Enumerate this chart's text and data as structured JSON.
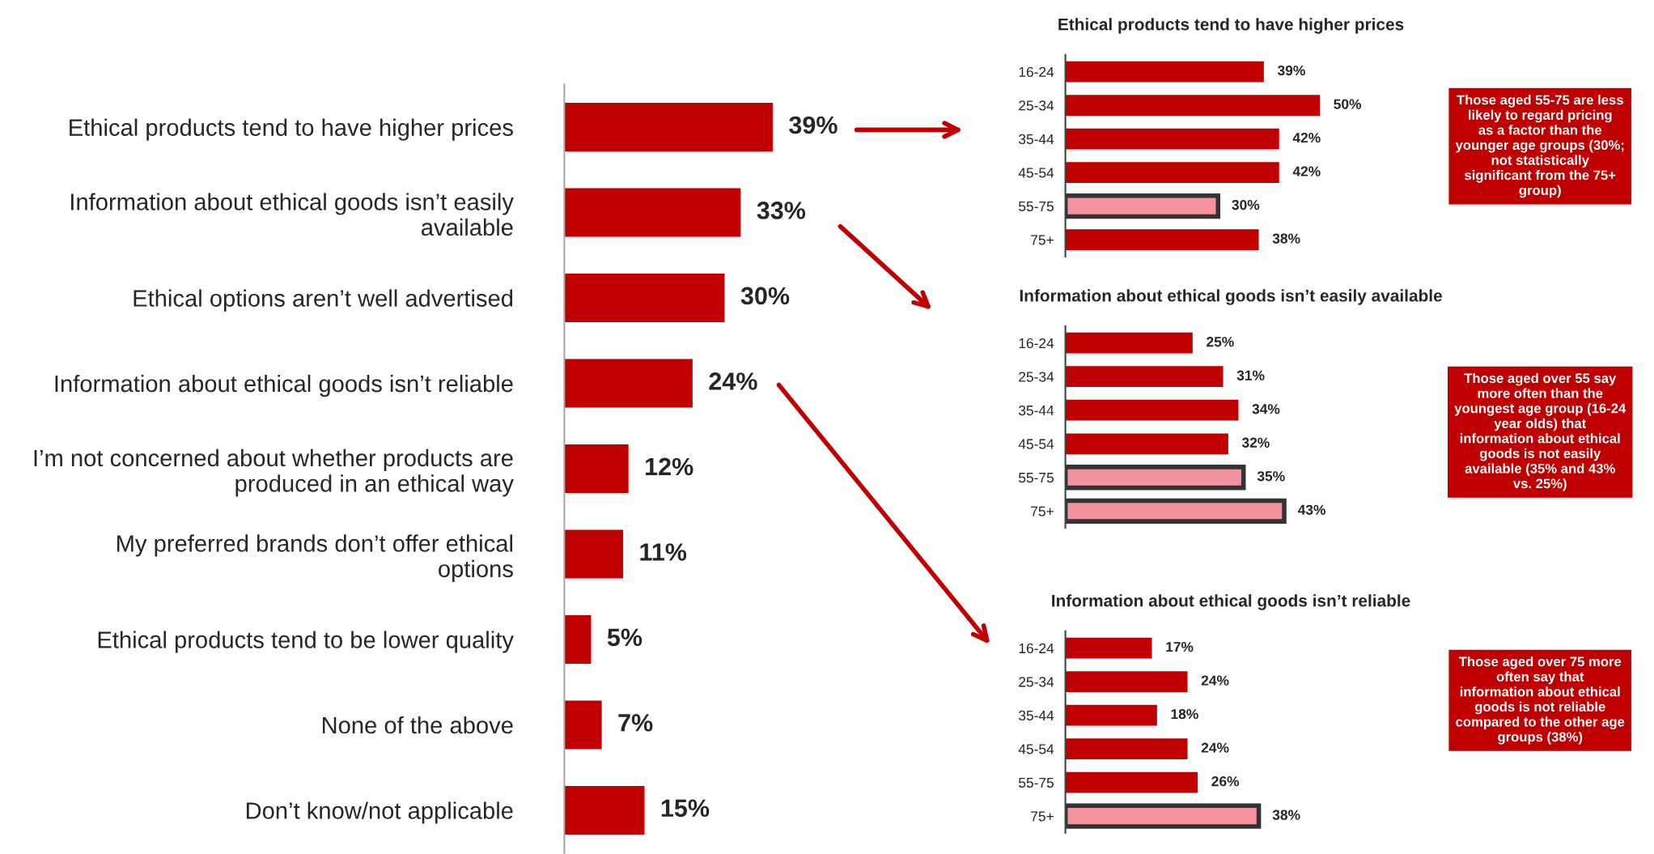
{
  "chart_data": [
    {
      "type": "bar",
      "orientation": "horizontal",
      "categories": [
        "Ethical products tend to have higher prices",
        "Information about ethical goods isn’t easily available",
        "Ethical options aren’t well advertised",
        "Information about ethical goods isn’t reliable",
        "I’m not concerned about whether products are produced in an ethical way",
        "My preferred brands don’t offer ethical options",
        "Ethical products tend to be lower quality",
        "None of the above",
        "Don’t know/not applicable"
      ],
      "values": [
        39,
        33,
        30,
        24,
        12,
        11,
        5,
        7,
        15
      ],
      "value_labels": [
        "39%",
        "33%",
        "30%",
        "24%",
        "12%",
        "11%",
        "5%",
        "7%",
        "15%"
      ],
      "colors": [
        "#c00000",
        "#c00000",
        "#c00000",
        "#c00000",
        "#c00000",
        "#c00000",
        "#c00000",
        "#c00000",
        "#c00000"
      ]
    },
    {
      "type": "bar",
      "orientation": "horizontal",
      "title": "Ethical products tend to have higher prices",
      "categories": [
        "16-24",
        "25-34",
        "35-44",
        "45-54",
        "55-75",
        "75+"
      ],
      "values": [
        39,
        50,
        42,
        42,
        30,
        38
      ],
      "value_labels": [
        "39%",
        "50%",
        "42%",
        "42%",
        "30%",
        "38%"
      ],
      "colors": [
        "#c00000",
        "#c00000",
        "#c00000",
        "#c00000",
        "#f4929e",
        "#c00000"
      ],
      "annotations": [
        "Those aged 55-75 are less likely to regard pricing as a factor than the younger age groups (30%; not statistically significant from the 75+ group)"
      ]
    },
    {
      "type": "bar",
      "orientation": "horizontal",
      "title": "Information about ethical goods isn’t easily available",
      "categories": [
        "16-24",
        "25-34",
        "35-44",
        "45-54",
        "55-75",
        "75+"
      ],
      "values": [
        25,
        31,
        34,
        32,
        35,
        43
      ],
      "value_labels": [
        "25%",
        "31%",
        "34%",
        "32%",
        "35%",
        "43%"
      ],
      "colors": [
        "#c00000",
        "#c00000",
        "#c00000",
        "#c00000",
        "#f4929e",
        "#f4929e"
      ],
      "annotations": [
        "Those aged over 55 say more often than the youngest age group (16-24 year olds) that information about ethical goods is not easily available (35% and 43% vs. 25%)"
      ]
    },
    {
      "type": "bar",
      "orientation": "horizontal",
      "title": "Information about ethical goods isn’t reliable",
      "categories": [
        "16-24",
        "25-34",
        "35-44",
        "45-54",
        "55-75",
        "75+"
      ],
      "values": [
        17,
        24,
        18,
        24,
        26,
        38
      ],
      "value_labels": [
        "17%",
        "24%",
        "18%",
        "24%",
        "26%",
        "38%"
      ],
      "colors": [
        "#c00000",
        "#c00000",
        "#c00000",
        "#c00000",
        "#c00000",
        "#f4929e"
      ],
      "annotations": [
        "Those aged over 75 more often say that information about ethical goods is not reliable compared to the other age groups (38%)"
      ]
    }
  ]
}
